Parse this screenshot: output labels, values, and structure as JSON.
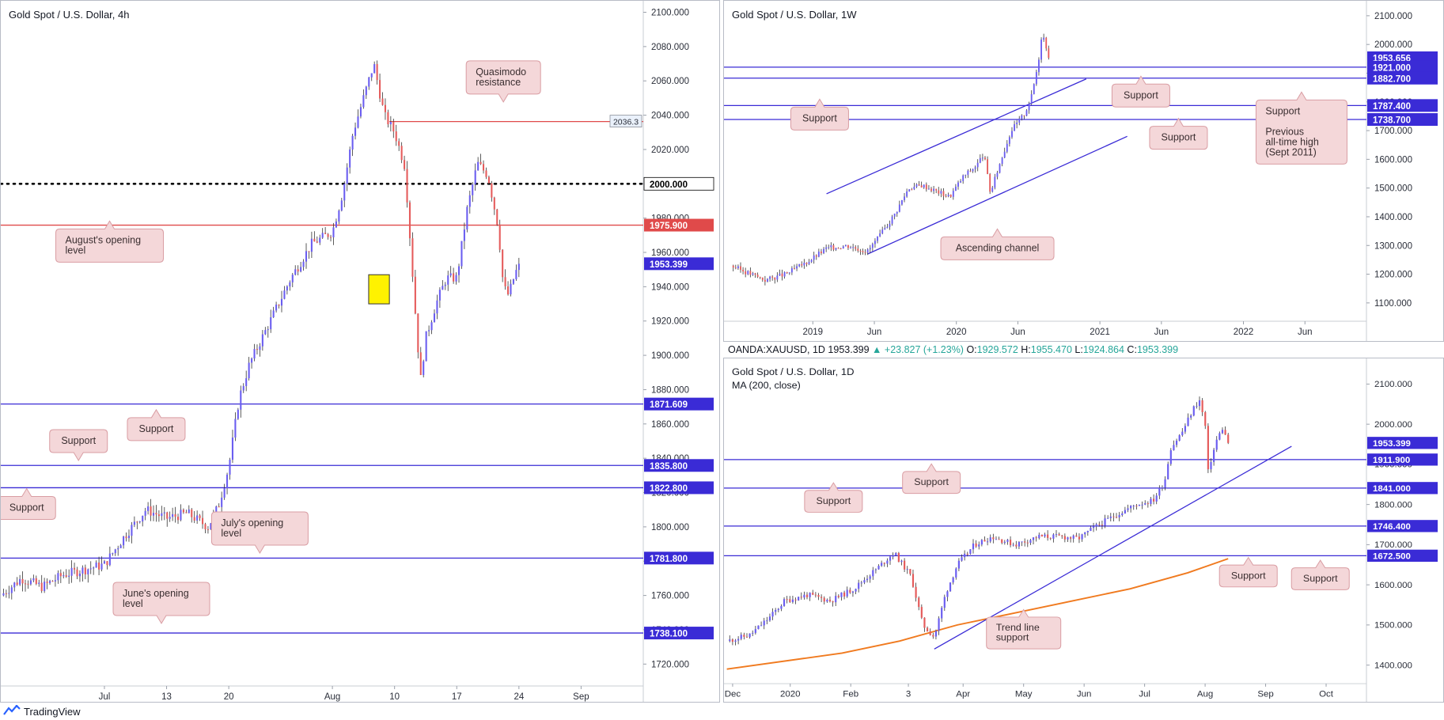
{
  "colors": {
    "support": "#3a2bd6",
    "red": "#e04a4a",
    "bull": "#6a5df0",
    "bear": "#e55b5b",
    "callout_bg": "#f4d7d9",
    "callout_border": "#d99da3",
    "ma": "#f07a1f",
    "highlight": "#fff200"
  },
  "footer": {
    "brand": "TradingView",
    "logo_icon": "tradingview-logo-icon"
  },
  "chart_data": [
    {
      "id": "h4",
      "type": "candlestick",
      "title": "Gold Spot / U.S. Dollar, 4h",
      "y_ticks": [
        1720,
        1740,
        1760,
        1780,
        1800,
        1820,
        1840,
        1860,
        1880,
        1900,
        1920,
        1940,
        1960,
        1980,
        2000,
        2020,
        2040,
        2060,
        2080,
        2100
      ],
      "y_tick_labels": [
        "1720.000",
        "1740.000",
        "1760.000",
        "1780.000",
        "1800.000",
        "1820.000",
        "1840.000",
        "1860.000",
        "1880.000",
        "1900.000",
        "1920.000",
        "1940.000",
        "1960.000",
        "1980.000",
        "2000.000",
        "2020.000",
        "2040.000",
        "2060.000",
        "2080.000",
        "2100.000"
      ],
      "x_labels": [
        {
          "t": 10,
          "label": "Jul"
        },
        {
          "t": 16,
          "label": "13"
        },
        {
          "t": 22,
          "label": "20"
        },
        {
          "t": 32,
          "label": "Aug"
        },
        {
          "t": 38,
          "label": "10"
        },
        {
          "t": 44,
          "label": "17"
        },
        {
          "t": 50,
          "label": "24"
        },
        {
          "t": 56,
          "label": "Sep"
        }
      ],
      "path": [
        [
          0,
          1760
        ],
        [
          2,
          1770
        ],
        [
          4,
          1765
        ],
        [
          6,
          1772
        ],
        [
          8,
          1775
        ],
        [
          10,
          1778
        ],
        [
          12,
          1795
        ],
        [
          14,
          1810
        ],
        [
          16,
          1805
        ],
        [
          18,
          1808
        ],
        [
          20,
          1800
        ],
        [
          21,
          1812
        ],
        [
          22,
          1835
        ],
        [
          23,
          1875
        ],
        [
          24,
          1895
        ],
        [
          26,
          1920
        ],
        [
          28,
          1945
        ],
        [
          30,
          1965
        ],
        [
          32,
          1972
        ],
        [
          33,
          1995
        ],
        [
          34,
          2030
        ],
        [
          35,
          2050
        ],
        [
          36,
          2070
        ],
        [
          37,
          2040
        ],
        [
          38,
          2030
        ],
        [
          39,
          2010
        ],
        [
          40,
          1925
        ],
        [
          40.5,
          1885
        ],
        [
          41,
          1910
        ],
        [
          42,
          1930
        ],
        [
          43,
          1945
        ],
        [
          44,
          1945
        ],
        [
          45,
          1985
        ],
        [
          46,
          2012
        ],
        [
          47,
          2005
        ],
        [
          48,
          1975
        ],
        [
          48.5,
          1940
        ],
        [
          49,
          1935
        ],
        [
          49.5,
          1945
        ],
        [
          50,
          1953.399
        ]
      ],
      "levels": [
        {
          "value": 2036.3,
          "label": "2036.3",
          "style": "red-thin"
        },
        {
          "value": 2000.0,
          "label": "2000.000",
          "style": "dotted"
        },
        {
          "value": 1975.9,
          "label": "1975.900",
          "style": "red"
        },
        {
          "value": 1953.399,
          "label": "1953.399",
          "style": "price"
        },
        {
          "value": 1871.609,
          "label": "1871.609",
          "style": "blue"
        },
        {
          "value": 1835.8,
          "label": "1835.800",
          "style": "blue"
        },
        {
          "value": 1822.8,
          "label": "1822.800",
          "style": "blue"
        },
        {
          "value": 1781.8,
          "label": "1781.800",
          "style": "blue"
        },
        {
          "value": 1738.1,
          "label": "1738.100",
          "style": "blue"
        }
      ],
      "annotations": [
        {
          "text": [
            "Quasimodo",
            "resistance"
          ],
          "t": 48.5,
          "y": 2062,
          "pointer": "down"
        },
        {
          "text": [
            "August's opening",
            "level"
          ],
          "t": 10.5,
          "y": 1964,
          "pointer": "up"
        },
        {
          "text": [
            "Support"
          ],
          "t": 15,
          "y": 1857,
          "pointer": "up"
        },
        {
          "text": [
            "Support"
          ],
          "t": 7.5,
          "y": 1850,
          "pointer": "down"
        },
        {
          "text": [
            "Support"
          ],
          "t": 2.5,
          "y": 1811,
          "pointer": "up"
        },
        {
          "text": [
            "July's opening",
            "level"
          ],
          "t": 25,
          "y": 1799,
          "pointer": "down"
        },
        {
          "text": [
            "June's opening",
            "level"
          ],
          "t": 15.5,
          "y": 1758,
          "pointer": "down"
        }
      ],
      "highlight": {
        "t0": 35.5,
        "t1": 37.5,
        "y0": 1930,
        "y1": 1947
      }
    },
    {
      "id": "w1",
      "type": "candlestick",
      "title": "Gold Spot / U.S. Dollar, 1W",
      "y_ticks": [
        1100,
        1200,
        1300,
        1400,
        1500,
        1600,
        1700,
        1800,
        1900,
        2000,
        2100
      ],
      "y_tick_labels": [
        "1100.000",
        "1200.000",
        "1300.000",
        "1400.000",
        "1500.000",
        "1600.000",
        "1700.000",
        "1800.000",
        "1900.000",
        "2000.000",
        "2100.000"
      ],
      "x_labels": [
        {
          "t": 12,
          "label": "2019"
        },
        {
          "t": 21,
          "label": "Jun"
        },
        {
          "t": 33,
          "label": "2020"
        },
        {
          "t": 42,
          "label": "Jun"
        },
        {
          "t": 54,
          "label": "2021"
        },
        {
          "t": 63,
          "label": "Jun"
        },
        {
          "t": 75,
          "label": "2022"
        },
        {
          "t": 84,
          "label": "Jun"
        }
      ],
      "path": [
        [
          0,
          1230
        ],
        [
          3,
          1200
        ],
        [
          5,
          1180
        ],
        [
          8,
          1200
        ],
        [
          11,
          1240
        ],
        [
          14,
          1290
        ],
        [
          17,
          1300
        ],
        [
          20,
          1280
        ],
        [
          22,
          1340
        ],
        [
          24,
          1410
        ],
        [
          26,
          1500
        ],
        [
          28,
          1510
        ],
        [
          30,
          1490
        ],
        [
          32,
          1470
        ],
        [
          34,
          1540
        ],
        [
          36,
          1580
        ],
        [
          37,
          1620
        ],
        [
          38,
          1480
        ],
        [
          39,
          1560
        ],
        [
          41,
          1700
        ],
        [
          42,
          1730
        ],
        [
          43,
          1760
        ],
        [
          44,
          1820
        ],
        [
          45,
          1940
        ],
        [
          45.5,
          2040
        ],
        [
          46,
          2010
        ],
        [
          46.5,
          1953.656
        ]
      ],
      "levels": [
        {
          "value": 1953.656,
          "label": "1953.656",
          "style": "price"
        },
        {
          "value": 1921.0,
          "label": "1921.000",
          "style": "blue"
        },
        {
          "value": 1882.7,
          "label": "1882.700",
          "style": "blue"
        },
        {
          "value": 1787.4,
          "label": "1787.400",
          "style": "blue"
        },
        {
          "value": 1738.7,
          "label": "1738.700",
          "style": "blue"
        }
      ],
      "channel": {
        "upper": [
          [
            14,
            1480
          ],
          [
            52,
            1880
          ]
        ],
        "lower": [
          [
            20,
            1270
          ],
          [
            58,
            1680
          ]
        ]
      },
      "annotations": [
        {
          "text": [
            "Support"
          ],
          "t": 60,
          "y": 1822,
          "pointer": "up"
        },
        {
          "text": [
            "Support"
          ],
          "t": 13,
          "y": 1742,
          "pointer": "up"
        },
        {
          "text": [
            "Support"
          ],
          "t": 65.5,
          "y": 1675,
          "pointer": "up"
        },
        {
          "text": [
            "Ascending channel"
          ],
          "t": 39,
          "y": 1290,
          "pointer": "up"
        },
        {
          "text": [
            "Support",
            "",
            "Previous",
            "all-time high",
            "(Sept 2011)"
          ],
          "t": 83.5,
          "y": 1695,
          "pointer": "up"
        }
      ]
    },
    {
      "id": "d1",
      "type": "candlestick",
      "title": "Gold Spot / U.S. Dollar, 1D",
      "legend": "MA (200, close)",
      "symbol_bar": {
        "symbol": "OANDA:XAUUSD, 1D",
        "price": "1953.399",
        "change": "+23.827 (+1.23%)",
        "o_label": "O:",
        "o": "1929.572",
        "h_label": "H:",
        "h": "1955.470",
        "l_label": "L:",
        "l": "1924.864",
        "c_label": "C:",
        "c": "1953.399"
      },
      "y_ticks": [
        1400,
        1500,
        1600,
        1700,
        1800,
        1900,
        2000,
        2100
      ],
      "y_tick_labels": [
        "1400.000",
        "1500.000",
        "1600.000",
        "1700.000",
        "1800.000",
        "1900.000",
        "2000.000",
        "2100.000"
      ],
      "x_labels": [
        {
          "t": 2,
          "label": "Dec"
        },
        {
          "t": 22,
          "label": "2020"
        },
        {
          "t": 43,
          "label": "Feb"
        },
        {
          "t": 63,
          "label": "3"
        },
        {
          "t": 82,
          "label": "Apr"
        },
        {
          "t": 103,
          "label": "May"
        },
        {
          "t": 124,
          "label": "Jun"
        },
        {
          "t": 145,
          "label": "Jul"
        },
        {
          "t": 166,
          "label": "Aug"
        },
        {
          "t": 187,
          "label": "Sep"
        },
        {
          "t": 208,
          "label": "Oct"
        }
      ],
      "path": [
        [
          0,
          1460
        ],
        [
          8,
          1475
        ],
        [
          15,
          1520
        ],
        [
          20,
          1560
        ],
        [
          28,
          1575
        ],
        [
          36,
          1560
        ],
        [
          44,
          1590
        ],
        [
          52,
          1640
        ],
        [
          58,
          1680
        ],
        [
          64,
          1620
        ],
        [
          68,
          1500
        ],
        [
          72,
          1470
        ],
        [
          76,
          1580
        ],
        [
          80,
          1650
        ],
        [
          86,
          1700
        ],
        [
          92,
          1720
        ],
        [
          100,
          1700
        ],
        [
          108,
          1720
        ],
        [
          116,
          1720
        ],
        [
          122,
          1715
        ],
        [
          128,
          1745
        ],
        [
          134,
          1770
        ],
        [
          142,
          1800
        ],
        [
          148,
          1810
        ],
        [
          152,
          1860
        ],
        [
          154,
          1940
        ],
        [
          158,
          1980
        ],
        [
          162,
          2040
        ],
        [
          164,
          2060
        ],
        [
          166,
          2000
        ],
        [
          167,
          1880
        ],
        [
          168,
          1910
        ],
        [
          170,
          1960
        ],
        [
          172,
          1990
        ],
        [
          174,
          1953.399
        ]
      ],
      "ma": [
        [
          0,
          1390
        ],
        [
          40,
          1430
        ],
        [
          60,
          1460
        ],
        [
          80,
          1500
        ],
        [
          100,
          1530
        ],
        [
          120,
          1560
        ],
        [
          140,
          1590
        ],
        [
          160,
          1630
        ],
        [
          174,
          1665
        ]
      ],
      "trendline": [
        [
          72,
          1440
        ],
        [
          196,
          1945
        ]
      ],
      "levels": [
        {
          "value": 1953.399,
          "label": "1953.399",
          "style": "price"
        },
        {
          "value": 1911.9,
          "label": "1911.900",
          "style": "blue"
        },
        {
          "value": 1841.0,
          "label": "1841.000",
          "style": "blue"
        },
        {
          "value": 1746.4,
          "label": "1746.400",
          "style": "blue"
        },
        {
          "value": 1672.5,
          "label": "1672.500",
          "style": "blue"
        }
      ],
      "annotations": [
        {
          "text": [
            "Support"
          ],
          "t": 71,
          "y": 1855,
          "pointer": "up"
        },
        {
          "text": [
            "Support"
          ],
          "t": 37,
          "y": 1808,
          "pointer": "up"
        },
        {
          "text": [
            "Support"
          ],
          "t": 181,
          "y": 1622,
          "pointer": "up"
        },
        {
          "text": [
            "Support"
          ],
          "t": 206,
          "y": 1615,
          "pointer": "up"
        },
        {
          "text": [
            "Trend line",
            "support"
          ],
          "t": 103,
          "y": 1480,
          "pointer": "up"
        }
      ]
    }
  ]
}
